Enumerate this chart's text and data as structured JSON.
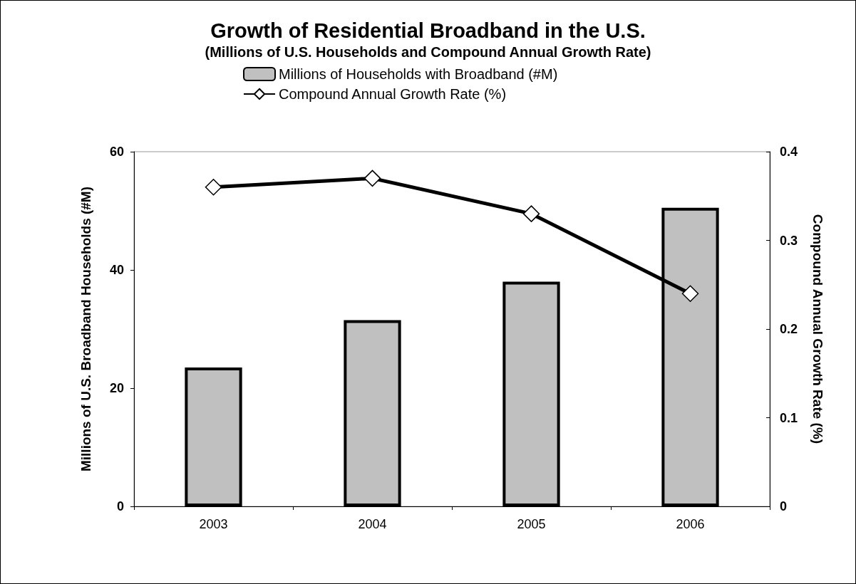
{
  "chart_data": {
    "type": "bar",
    "title": "Growth of Residential Broadband in the U.S.",
    "subtitle": "(Millions of U.S. Households and Compound Annual Growth Rate)",
    "ylabel": "Millions of U.S. Broadband Households (#M)",
    "y2label": "Compound Annual Growth Rate (%)",
    "categories": [
      "2003",
      "2004",
      "2005",
      "2006"
    ],
    "series": [
      {
        "name": "Millions of Households with Broadband (#M)",
        "color": "#c0c0c0",
        "values": [
          23.5,
          31.5,
          38,
          50.5
        ]
      },
      {
        "name": "Compound Annual Growth Rate (%)",
        "type": "line",
        "axis": "y2",
        "color": "#000000",
        "marker": "diamond",
        "values": [
          0.36,
          0.37,
          0.33,
          0.24
        ]
      }
    ],
    "ylim": [
      0,
      60
    ],
    "yticks": [
      0,
      20,
      40,
      60
    ],
    "y2lim": [
      0,
      0.4
    ],
    "y2ticks": [
      0,
      0.1,
      0.2,
      0.3,
      0.4
    ],
    "grid": false,
    "legend": "top"
  }
}
